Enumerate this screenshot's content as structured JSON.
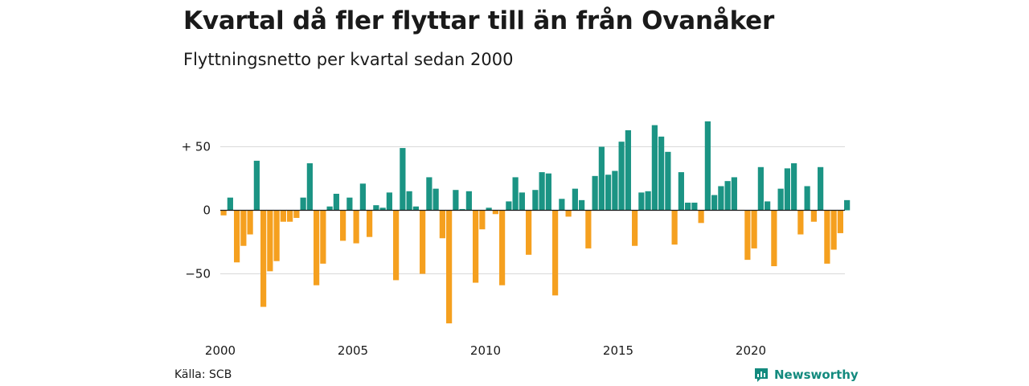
{
  "title": "Kvartal då fler flyttar till än från Ovanåker",
  "subtitle": "Flyttningsnetto per kvartal sedan 2000",
  "source": "Källa: SCB",
  "brand": {
    "name": "Newsworthy",
    "icon": "newsworthy-logo-icon",
    "color": "#138a7e"
  },
  "chart_data": {
    "type": "bar",
    "colors": {
      "positive": "#1b9484",
      "negative": "#f5a01f",
      "grid": "#d9d9d9",
      "zero_line": "#1a1a1a"
    },
    "grid": true,
    "legend": "none",
    "yticks": [
      {
        "value": 50,
        "label": "+ 50"
      },
      {
        "value": 0,
        "label": "0"
      },
      {
        "value": -50,
        "label": "−50"
      }
    ],
    "xticks": [
      {
        "year": 2000,
        "label": "2000"
      },
      {
        "year": 2005,
        "label": "2005"
      },
      {
        "year": 2010,
        "label": "2010"
      },
      {
        "year": 2015,
        "label": "2015"
      },
      {
        "year": 2020,
        "label": "2020"
      }
    ],
    "ylim": [
      -90,
      70
    ],
    "start_year": 2000,
    "start_quarter": 1,
    "values": [
      -4,
      10,
      -41,
      -28,
      -19,
      39,
      -76,
      -48,
      -40,
      -9,
      -9,
      -6,
      10,
      37,
      -59,
      -42,
      3,
      13,
      -24,
      10,
      -26,
      21,
      -21,
      4,
      2,
      14,
      -55,
      49,
      15,
      3,
      -50,
      26,
      17,
      -22,
      -89,
      16,
      1,
      15,
      -57,
      -15,
      2,
      -3,
      -59,
      7,
      26,
      14,
      -35,
      16,
      30,
      29,
      -67,
      9,
      -5,
      17,
      8,
      -30,
      27,
      50,
      28,
      31,
      54,
      63,
      -28,
      14,
      15,
      67,
      58,
      46,
      -27,
      30,
      6,
      6,
      -10,
      70,
      12,
      19,
      23,
      26,
      0,
      -39,
      -30,
      34,
      7,
      -44,
      17,
      33,
      37,
      -19,
      19,
      -9,
      34,
      -42,
      -31,
      -18,
      8
    ]
  }
}
